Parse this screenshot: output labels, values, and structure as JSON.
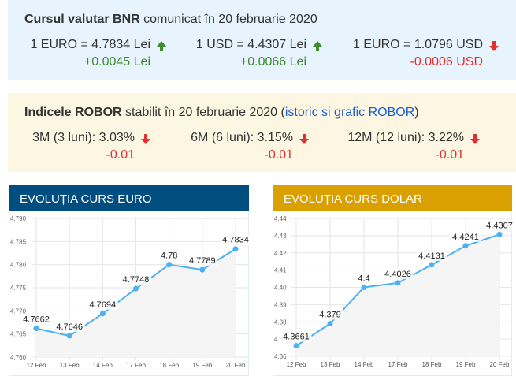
{
  "bnr": {
    "title_bold": "Cursul valutar BNR",
    "title_rest": " comunicat în 20 februarie 2020",
    "items": [
      {
        "value": "1 EURO = 4.7834 Lei",
        "change": "+0.0045 Lei",
        "dir": "up"
      },
      {
        "value": "1 USD = 4.4307 Lei",
        "change": "+0.0066 Lei",
        "dir": "up"
      },
      {
        "value": "1 EURO = 1.0796 USD",
        "change": "-0.0006 USD",
        "dir": "down"
      }
    ]
  },
  "robor": {
    "title_bold": "Indicele ROBOR",
    "title_rest": " stabilit în 20 februarie 2020 (",
    "link": "istoric si grafic ROBOR",
    "title_end": ")",
    "items": [
      {
        "value": "3M (3 luni): 3.03%",
        "change": "-0.01",
        "dir": "down"
      },
      {
        "value": "6M (6 luni): 3.15%",
        "change": "-0.01",
        "dir": "down"
      },
      {
        "value": "12M (12 luni): 3.22%",
        "change": "-0.01",
        "dir": "down"
      }
    ]
  },
  "colors": {
    "up": "#3d8a2f",
    "down": "#e03030",
    "line": "#4db0f5",
    "euro_header": "#004e7f",
    "dollar_header": "#d9a000"
  },
  "chart_data": [
    {
      "type": "line",
      "title": "EVOLUȚIA CURS EURO",
      "categories": [
        "12 Feb",
        "13 Feb",
        "14 Feb",
        "17 Feb",
        "18 Feb",
        "19 Feb",
        "20 Feb"
      ],
      "values": [
        4.7662,
        4.7646,
        4.7694,
        4.7748,
        4.78,
        4.7789,
        4.7834
      ],
      "labels": [
        "4.7662",
        "4.7646",
        "4.7694",
        "4.7748",
        "4.78",
        "4.7789",
        "4.7834"
      ],
      "ylim": [
        4.76,
        4.79
      ],
      "yticks": [
        "4.790",
        "4.785",
        "4.780",
        "4.775",
        "4.770",
        "4.765",
        "4.760"
      ],
      "grid": true
    },
    {
      "type": "line",
      "title": "EVOLUȚIA CURS DOLAR",
      "categories": [
        "12 Feb",
        "13 Feb",
        "14 Feb",
        "17 Feb",
        "18 Feb",
        "19 Feb",
        "20 Feb"
      ],
      "values": [
        4.3661,
        4.379,
        4.4,
        4.4026,
        4.4131,
        4.4241,
        4.4307
      ],
      "labels": [
        "4.3661",
        "4.379",
        "4.4",
        "4.4026",
        "4.4131",
        "4.4241",
        "4.4307"
      ],
      "ylim": [
        4.36,
        4.44
      ],
      "yticks": [
        "4.44",
        "4.43",
        "4.42",
        "4.41",
        "4.40",
        "4.39",
        "4.38",
        "4.37",
        "4.36"
      ],
      "grid": true
    }
  ]
}
